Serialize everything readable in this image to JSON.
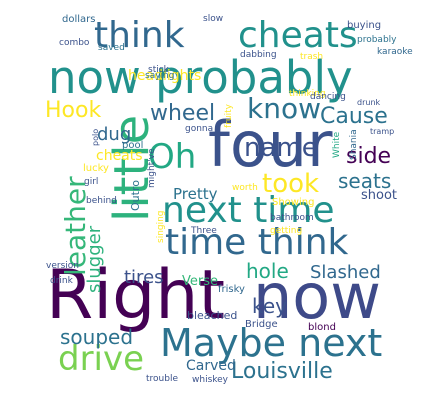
{
  "words": [
    {
      "text": "Right",
      "color": "#440154"
    },
    {
      "text": "now",
      "color": "#3e4a89"
    },
    {
      "text": "four",
      "color": "#3b528b"
    },
    {
      "text": "now probably",
      "color": "#21918c"
    },
    {
      "text": "Maybe next",
      "color": "#2c728e"
    },
    {
      "text": "time think",
      "color": "#31688e"
    },
    {
      "text": "next time",
      "color": "#21918c"
    },
    {
      "text": "little",
      "color": "#2db27d"
    },
    {
      "text": "think",
      "color": "#31688e"
    },
    {
      "text": "cheats",
      "color": "#21918c"
    },
    {
      "text": "leather",
      "color": "#35b779"
    },
    {
      "text": "Oh",
      "color": "#22a884"
    },
    {
      "text": "know",
      "color": "#2c728e"
    },
    {
      "text": "took",
      "color": "#fde725"
    },
    {
      "text": "name",
      "color": "#3b528b"
    },
    {
      "text": "drive",
      "color": "#7ad151"
    },
    {
      "text": "Louisville",
      "color": "#2c728e"
    },
    {
      "text": "Hook",
      "color": "#fde725"
    },
    {
      "text": "wheel",
      "color": "#31688e"
    },
    {
      "text": "Cause",
      "color": "#2c728e"
    },
    {
      "text": "side",
      "color": "#440154"
    },
    {
      "text": "seats",
      "color": "#2c728e"
    },
    {
      "text": "hole",
      "color": "#22a884"
    },
    {
      "text": "Slashed",
      "color": "#31688e"
    },
    {
      "text": "key",
      "color": "#3b528b"
    },
    {
      "text": "souped",
      "color": "#2c728e"
    },
    {
      "text": "slugger",
      "color": "#2db27d"
    },
    {
      "text": "dug",
      "color": "#31688e"
    },
    {
      "text": "tires",
      "color": "#3b528b"
    },
    {
      "text": "Pretty",
      "color": "#2c728e"
    },
    {
      "text": "Carved",
      "color": "#31688e"
    },
    {
      "text": "shoot",
      "color": "#3b528b"
    },
    {
      "text": "headlights",
      "color": "#fde725"
    },
    {
      "text": "cheats",
      "color": "#fde725"
    },
    {
      "text": "Verse",
      "color": "#35b779"
    },
    {
      "text": "frisky",
      "color": "#31688e"
    },
    {
      "text": "bleached",
      "color": "#3b528b"
    },
    {
      "text": "Bridge",
      "color": "#3b528b"
    },
    {
      "text": "blond",
      "color": "#440154"
    },
    {
      "text": "dollars",
      "color": "#31688e"
    },
    {
      "text": "combo",
      "color": "#3b528b"
    },
    {
      "text": "slow",
      "color": "#3b528b"
    },
    {
      "text": "saved",
      "color": "#2c728e"
    },
    {
      "text": "buying",
      "color": "#3b528b"
    },
    {
      "text": "probably",
      "color": "#2c728e"
    },
    {
      "text": "karaoke",
      "color": "#31688e"
    },
    {
      "text": "trash",
      "color": "#fde725"
    },
    {
      "text": "stick",
      "color": "#3b528b"
    },
    {
      "text": "saying",
      "color": "#2c728e"
    },
    {
      "text": "dabbing",
      "color": "#3b528b"
    },
    {
      "text": "thinking",
      "color": "#fde725"
    },
    {
      "text": "dancing",
      "color": "#3b528b"
    },
    {
      "text": "drunk",
      "color": "#3b528b"
    },
    {
      "text": "fruity",
      "color": "#fde725"
    },
    {
      "text": "gonna",
      "color": "#3b528b"
    },
    {
      "text": "tramp",
      "color": "#3b528b"
    },
    {
      "text": "polo",
      "color": "#3b528b"
    },
    {
      "text": "pool",
      "color": "#2c728e"
    },
    {
      "text": "might've",
      "color": "#3b528b"
    },
    {
      "text": "White",
      "color": "#22a884"
    },
    {
      "text": "Shania",
      "color": "#31688e"
    },
    {
      "text": "lucky",
      "color": "#fde725"
    },
    {
      "text": "girl",
      "color": "#3b528b"
    },
    {
      "text": "behind",
      "color": "#3b528b"
    },
    {
      "text": "Outro",
      "color": "#2c728e"
    },
    {
      "text": "worth",
      "color": "#fde725"
    },
    {
      "text": "Showing",
      "color": "#fde725"
    },
    {
      "text": "bathroom",
      "color": "#3b528b"
    },
    {
      "text": "getting",
      "color": "#fde725"
    },
    {
      "text": "singing",
      "color": "#fde725"
    },
    {
      "text": "Three",
      "color": "#3b528b"
    },
    {
      "text": "version",
      "color": "#3b528b"
    },
    {
      "text": "drink",
      "color": "#3b528b"
    },
    {
      "text": "trouble",
      "color": "#3b528b"
    },
    {
      "text": "whiskey",
      "color": "#3b528b"
    }
  ]
}
